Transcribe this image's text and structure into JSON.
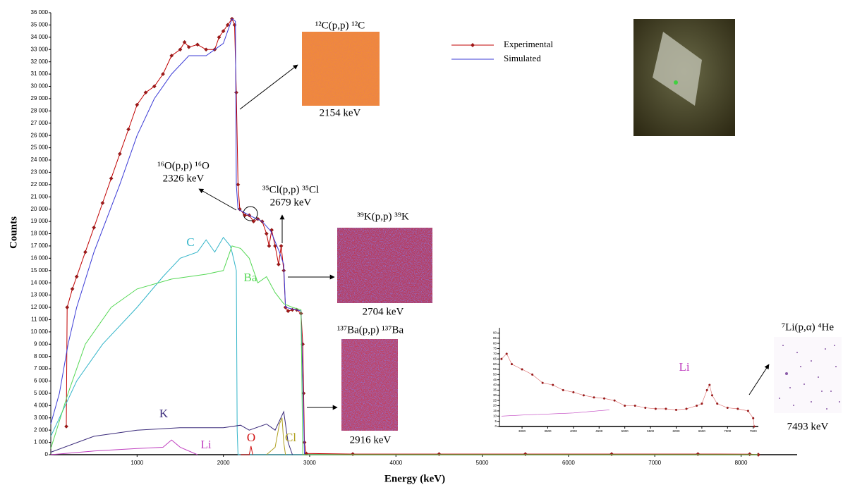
{
  "chart_data": [
    {
      "type": "line",
      "xlabel": "Energy (keV)",
      "ylabel": "Counts",
      "xlim": [
        0,
        8650
      ],
      "ylim": [
        0,
        36000
      ],
      "xticks": [
        1000,
        2000,
        3000,
        4000,
        5000,
        6000,
        7000,
        8000
      ],
      "yticks": [
        0,
        {
          "value": 1000,
          "label": "1 000"
        },
        {
          "value": 2000,
          "label": "2 000"
        },
        {
          "value": 3000,
          "label": "3 000"
        },
        {
          "value": 4000,
          "label": "4 000"
        },
        {
          "value": 5000,
          "label": "5 000"
        },
        {
          "value": 6000,
          "label": "6 000"
        },
        {
          "value": 7000,
          "label": "7 000"
        },
        {
          "value": 8000,
          "label": "8 000"
        },
        {
          "value": 9000,
          "label": "9 000"
        },
        {
          "value": 10000,
          "label": "10 000"
        },
        {
          "value": 11000,
          "label": "11 000"
        },
        {
          "value": 12000,
          "label": "12 000"
        },
        {
          "value": 13000,
          "label": "13 000"
        },
        {
          "value": 14000,
          "label": "14 000"
        },
        {
          "value": 15000,
          "label": "15 000"
        },
        {
          "value": 16000,
          "label": "16 000"
        },
        {
          "value": 17000,
          "label": "17 000"
        },
        {
          "value": 18000,
          "label": "18 000"
        },
        {
          "value": 19000,
          "label": "19 000"
        },
        {
          "value": 20000,
          "label": "20 000"
        },
        {
          "value": 21000,
          "label": "21 000"
        },
        {
          "value": 22000,
          "label": "22 000"
        },
        {
          "value": 23000,
          "label": "23 000"
        },
        {
          "value": 24000,
          "label": "24 000"
        },
        {
          "value": 25000,
          "label": "25 000"
        },
        {
          "value": 26000,
          "label": "26 000"
        },
        {
          "value": 27000,
          "label": "27 000"
        },
        {
          "value": 28000,
          "label": "28 000"
        },
        {
          "value": 29000,
          "label": "29 000"
        },
        {
          "value": 30000,
          "label": "30 000"
        },
        {
          "value": 31000,
          "label": "31 000"
        },
        {
          "value": 32000,
          "label": "32 000"
        },
        {
          "value": 33000,
          "label": "33 000"
        },
        {
          "value": 34000,
          "label": "34 000"
        },
        {
          "value": 35000,
          "label": "35 000"
        },
        {
          "value": 36000,
          "label": "36 000"
        }
      ],
      "legend": true,
      "series": [
        {
          "name": "Experimental",
          "color": "#c00000",
          "marker": "diamond",
          "x": [
            180,
            190,
            250,
            300,
            400,
            500,
            600,
            700,
            800,
            900,
            1000,
            1100,
            1200,
            1300,
            1400,
            1500,
            1550,
            1600,
            1700,
            1800,
            1900,
            1950,
            2000,
            2050,
            2100,
            2130,
            2150,
            2170,
            2190,
            2250,
            2300,
            2350,
            2400,
            2450,
            2500,
            2530,
            2560,
            2600,
            2640,
            2670,
            2700,
            2720,
            2750,
            2800,
            2850,
            2900,
            2920,
            2930,
            2940,
            2960,
            3500,
            4500,
            5500,
            6500,
            7500,
            8100,
            8200
          ],
          "values": [
            2300,
            12000,
            13500,
            14500,
            16500,
            18500,
            20500,
            22500,
            24500,
            26500,
            28500,
            29500,
            30000,
            31000,
            32500,
            33000,
            33600,
            33200,
            33400,
            33000,
            33000,
            34000,
            34500,
            35000,
            35500,
            35000,
            29500,
            22000,
            20000,
            19500,
            19500,
            19000,
            19200,
            19000,
            18000,
            17000,
            18300,
            17000,
            15500,
            17000,
            15000,
            12000,
            11700,
            11800,
            11800,
            11500,
            9000,
            5000,
            1000,
            100,
            50,
            50,
            50,
            50,
            50,
            40,
            0
          ]
        },
        {
          "name": "Simulated",
          "color": "#3b3bd6",
          "x": [
            0,
            100,
            200,
            300,
            500,
            800,
            1000,
            1200,
            1400,
            1600,
            1800,
            1900,
            2000,
            2100,
            2140,
            2150,
            2170,
            2300,
            2450,
            2550,
            2650,
            2700,
            2720,
            2900,
            2920,
            2940,
            8200
          ],
          "values": [
            2500,
            5000,
            9000,
            12000,
            16500,
            22000,
            26000,
            29000,
            31000,
            32500,
            32500,
            33000,
            33500,
            35500,
            35300,
            22000,
            20000,
            19500,
            19000,
            18200,
            16500,
            15500,
            12000,
            11700,
            6000,
            0,
            0
          ]
        },
        {
          "name": "C",
          "color": "#33b5c9",
          "x": [
            0,
            300,
            600,
            1000,
            1300,
            1500,
            1700,
            1800,
            1900,
            2000,
            2080,
            2100,
            2150,
            2160,
            2170,
            8200
          ],
          "values": [
            1500,
            6000,
            9000,
            12000,
            14500,
            16000,
            16500,
            17500,
            16500,
            17700,
            17000,
            16500,
            15000,
            2000,
            0,
            0
          ]
        },
        {
          "name": "Ba",
          "color": "#55d855",
          "x": [
            0,
            200,
            400,
            700,
            1000,
            1400,
            1800,
            2000,
            2100,
            2200,
            2300,
            2400,
            2500,
            2600,
            2700,
            2800,
            2900,
            2920,
            8200
          ],
          "values": [
            500,
            5000,
            9000,
            12000,
            13500,
            14300,
            14700,
            15000,
            17000,
            16800,
            16000,
            14000,
            14500,
            13200,
            12300,
            12000,
            11800,
            0,
            0
          ]
        },
        {
          "name": "K",
          "color": "#3a2a7a",
          "x": [
            0,
            500,
            1000,
            1500,
            2000,
            2200,
            2300,
            2500,
            2600,
            2700,
            2750,
            2800
          ],
          "values": [
            200,
            1500,
            2000,
            2200,
            2200,
            2400,
            2000,
            2500,
            2000,
            3500,
            1000,
            0
          ]
        },
        {
          "name": "Li",
          "color": "#c040c0",
          "x": [
            0,
            500,
            1000,
            1300,
            1400,
            1500,
            1700
          ],
          "values": [
            0,
            300,
            500,
            600,
            1200,
            600,
            0
          ]
        },
        {
          "name": "O",
          "color": "#d01010",
          "x": [
            2200,
            2300,
            2320,
            2340
          ],
          "values": [
            0,
            0,
            700,
            0
          ]
        },
        {
          "name": "Cl",
          "color": "#b0a020",
          "x": [
            2500,
            2600,
            2650,
            2680,
            2700,
            2720
          ],
          "values": [
            0,
            600,
            2500,
            3000,
            1000,
            0
          ]
        }
      ],
      "annotations": [
        {
          "reaction": "¹²C(p,p) ¹²C",
          "energy": "2154 keV"
        },
        {
          "reaction": "¹⁶O(p,p) ¹⁶O",
          "energy": "2326 keV"
        },
        {
          "reaction": "³⁵Cl(p,p) ³⁵Cl",
          "energy": "2679 keV"
        },
        {
          "reaction": "³⁹K(p,p) ³⁹K",
          "energy": "2704 keV"
        },
        {
          "reaction": "¹³⁷Ba(p,p) ¹³⁷Ba",
          "energy": "2916 keV"
        },
        {
          "reaction": "⁷Li(p,α) ⁴He",
          "energy": "7493 keV"
        }
      ]
    },
    {
      "type": "line",
      "xlim": [
        2560,
        7600
      ],
      "ylim": [
        0,
        95
      ],
      "xticks": [
        3000,
        3500,
        4000,
        4500,
        5000,
        5500,
        6000,
        6500,
        7000,
        7500
      ],
      "yticks": [
        0,
        5,
        10,
        15,
        20,
        25,
        30,
        35,
        40,
        45,
        50,
        55,
        60,
        65,
        70,
        75,
        80,
        85,
        90
      ],
      "series": [
        {
          "color": "#c00000",
          "marker": "dot",
          "x": [
            2600,
            2700,
            2800,
            3000,
            3200,
            3400,
            3600,
            3800,
            4000,
            4200,
            4400,
            4600,
            4800,
            5000,
            5200,
            5400,
            5600,
            5800,
            6000,
            6200,
            6400,
            6500,
            6600,
            6650,
            6700,
            6800,
            7000,
            7200,
            7400,
            7500,
            7520
          ],
          "values": [
            65,
            70,
            60,
            55,
            50,
            42,
            40,
            35,
            33,
            30,
            28,
            27,
            25,
            20,
            20,
            18,
            17,
            17,
            16,
            17,
            20,
            22,
            35,
            40,
            30,
            22,
            18,
            17,
            15,
            8,
            0
          ]
        },
        {
          "name": "Li",
          "color": "#c040c0",
          "x": [
            2600,
            3000,
            4000,
            4700
          ],
          "values": [
            10,
            11,
            13,
            16
          ]
        }
      ]
    }
  ]
}
